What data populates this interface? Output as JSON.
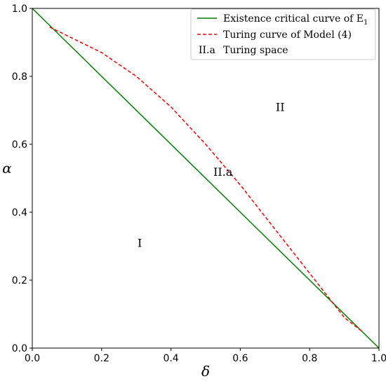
{
  "chart_data": {
    "type": "line",
    "xlabel": "δ",
    "ylabel": "α",
    "xlim": [
      0.0,
      1.0
    ],
    "ylim": [
      0.0,
      1.0
    ],
    "xticks": [
      "0.0",
      "0.2",
      "0.4",
      "0.6",
      "0.8",
      "1.0"
    ],
    "yticks": [
      "0.0",
      "0.2",
      "0.4",
      "0.6",
      "0.8",
      "1.0"
    ],
    "grid": false,
    "legend_position": "top-right",
    "series": [
      {
        "name": "Existence critical curve of E",
        "name_subscript": "1",
        "style": "solid",
        "color": "#008000",
        "x": [
          0.0,
          1.0
        ],
        "y": [
          1.0,
          0.0
        ]
      },
      {
        "name": "Turing curve of Model (4)",
        "style": "dashed",
        "color": "#ff0000",
        "x": [
          0.05,
          0.1,
          0.2,
          0.3,
          0.4,
          0.5,
          0.6,
          0.7,
          0.8,
          0.9,
          0.95
        ],
        "y": [
          0.945,
          0.92,
          0.87,
          0.8,
          0.71,
          0.6,
          0.48,
          0.35,
          0.22,
          0.09,
          0.05
        ]
      }
    ],
    "legend_extra": {
      "marker": "II.a",
      "label": "Turing space"
    },
    "annotations": [
      {
        "text": "I",
        "x": 0.31,
        "y": 0.31
      },
      {
        "text": "II.a",
        "x": 0.55,
        "y": 0.52
      },
      {
        "text": "II",
        "x": 0.715,
        "y": 0.71
      }
    ]
  }
}
